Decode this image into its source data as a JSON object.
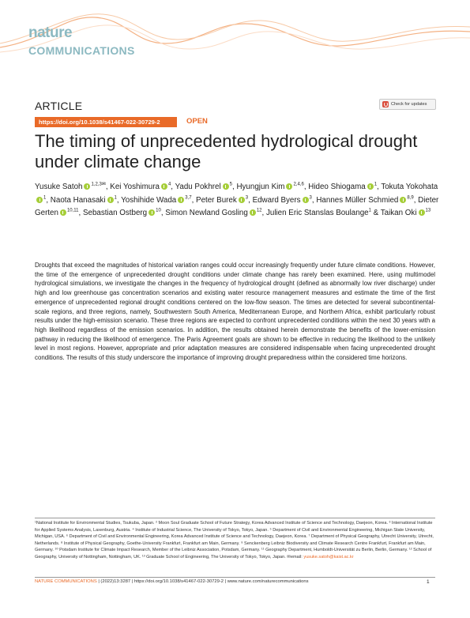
{
  "header": {
    "logo_line1": "nature",
    "logo_line2": "COMMUNICATIONS",
    "accent_color": "#e96a28",
    "logo_color": "#8cb9c1"
  },
  "article_type": "ARTICLE",
  "check_updates_label": "Check for updates",
  "doi_link": "https://doi.org/10.1038/s41467-022-30729-2",
  "open_label": "OPEN",
  "title": "The timing of unprecedented hydrological drought under climate change",
  "authors": [
    {
      "name": "Yusuke Satoh",
      "aff": "1,2,3✉"
    },
    {
      "name": "Kei Yoshimura",
      "aff": "4"
    },
    {
      "name": "Yadu Pokhrel",
      "aff": "5"
    },
    {
      "name": "Hyungjun Kim",
      "aff": "2,4,6"
    },
    {
      "name": "Hideo Shiogama",
      "aff": "1"
    },
    {
      "name": "Tokuta Yokohata",
      "aff": "1"
    },
    {
      "name": "Naota Hanasaki",
      "aff": "1"
    },
    {
      "name": "Yoshihide Wada",
      "aff": "3,7"
    },
    {
      "name": "Peter Burek",
      "aff": "3"
    },
    {
      "name": "Edward Byers",
      "aff": "3"
    },
    {
      "name": "Hannes Müller Schmied",
      "aff": "8,9"
    },
    {
      "name": "Dieter Gerten",
      "aff": "10,11"
    },
    {
      "name": "Sebastian Ostberg",
      "aff": "10"
    },
    {
      "name": "Simon Newland Gosling",
      "aff": "12"
    },
    {
      "name": "Julien Eric Stanslas Boulange",
      "aff": "1"
    },
    {
      "name": "Taikan Oki",
      "aff": "13"
    }
  ],
  "abstract": "Droughts that exceed the magnitudes of historical variation ranges could occur increasingly frequently under future climate conditions. However, the time of the emergence of unprecedented drought conditions under climate change has rarely been examined. Here, using multimodel hydrological simulations, we investigate the changes in the frequency of hydrological drought (defined as abnormally low river discharge) under high and low greenhouse gas concentration scenarios and existing water resource management measures and estimate the time of the first emergence of unprecedented regional drought conditions centered on the low-flow season. The times are detected for several subcontinental-scale regions, and three regions, namely, Southwestern South America, Mediterranean Europe, and Northern Africa, exhibit particularly robust results under the high-emission scenario. These three regions are expected to confront unprecedented conditions within the next 30 years with a high likelihood regardless of the emission scenarios. In addition, the results obtained herein demonstrate the benefits of the lower-emission pathway in reducing the likelihood of emergence. The Paris Agreement goals are shown to be effective in reducing the likelihood to the unlikely level in most regions. However, appropriate and prior adaptation measures are considered indispensable when facing unprecedented drought conditions. The results of this study underscore the importance of improving drought preparedness within the considered time horizons.",
  "affiliations": "¹National Institute for Environmental Studies, Tsukuba, Japan. ² Moon Soul Graduate School of Future Strategy, Korea Advanced Institute of Science and Technology, Daejeon, Korea. ³ International Institute for Applied Systems Analysis, Laxenburg, Austria. ⁴ Institute of Industrial Science, The University of Tokyo, Tokyo, Japan. ⁵ Department of Civil and Environmental Engineering, Michigan State University, Michigan, USA. ⁶ Department of Civil and Environmental Engineering, Korea Advanced Institute of Science and Technology, Daejeon, Korea. ⁷ Department of Physical Geography, Utrecht University, Utrecht, Netherlands. ⁸ Institute of Physical Geography, Goethe-University Frankfurt, Frankfurt am Main, Germany. ⁹ Senckenberg Leibniz Biodiversity and Climate Research Centre Frankfurt, Frankfurt am Main, Germany. ¹⁰ Potsdam Institute for Climate Impact Research, Member of the Leibniz Association, Potsdam, Germany. ¹¹ Geography Department, Humboldt-Universität zu Berlin, Berlin, Germany. ¹² School of Geography, University of Nottingham, Nottingham, UK. ¹³ Graduate School of Engineering, The University of Tokyo, Tokyo, Japan. ✉email:",
  "email": "yusuke.satoh@kaist.ac.kr",
  "footer": {
    "journal": "NATURE COMMUNICATIONS",
    "citation": "| (2022)13:3287 | https://doi.org/10.1038/s41467-022-30729-2 | www.nature.com/naturecommunications",
    "page_number": "1"
  }
}
